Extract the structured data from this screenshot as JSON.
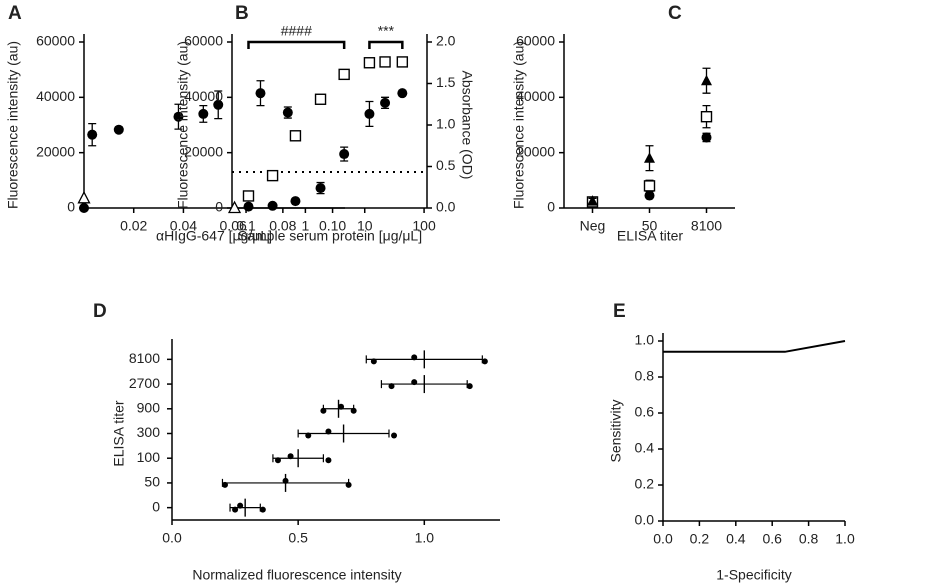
{
  "chart_data": [
    {
      "panel": "A",
      "type": "scatter",
      "ylabel": "Fluorescence intensity (au)",
      "xlabel": "αHIgG-647 [μg/μL]",
      "xlim": [
        0,
        0.105
      ],
      "xticks": [
        0.02,
        0.04,
        0.06,
        0.08,
        {
          "value": 0.1,
          "label": "0.10"
        }
      ],
      "ylim": [
        0,
        60000
      ],
      "yticks": [
        0,
        20000,
        40000,
        60000
      ],
      "series": [
        {
          "marker": "circle",
          "color": "#000000",
          "x": [
            0,
            0.0033,
            0.014,
            0.038,
            0.048,
            0.054,
            0.071,
            0.082
          ],
          "values": [
            0,
            26500,
            28300,
            33000,
            34000,
            37300,
            41500,
            34500
          ],
          "errors": [
            null,
            4000,
            null,
            4500,
            3000,
            5000,
            4500,
            2000
          ]
        },
        {
          "marker": "triangle-open",
          "color": "#000000",
          "x": [
            0
          ],
          "values": [
            3500
          ]
        }
      ]
    },
    {
      "panel": "B",
      "type": "scatter",
      "xscale": "log",
      "ylabel": "Fluorescence intensity (au)",
      "y2label": "Absorbance (OD)",
      "xlabel": "Sample serum protein [μg/μL]",
      "xlim": [
        0.058,
        112
      ],
      "xticks": [
        0.1,
        1,
        10,
        100
      ],
      "ylim": [
        0,
        60000
      ],
      "yticks": [
        0,
        20000,
        40000,
        60000
      ],
      "y2lim": [
        0,
        2
      ],
      "y2ticks": [
        {
          "value": 0,
          "label": "0.0"
        },
        0.5,
        {
          "value": 1,
          "label": "1.0"
        },
        1.5,
        {
          "value": 2,
          "label": "2.0"
        }
      ],
      "reference_line": 13000,
      "brackets": [
        {
          "label": "####",
          "x": [
            0.11,
            4.5
          ]
        },
        {
          "label": "***",
          "x": [
            12,
            43
          ]
        }
      ],
      "series": [
        {
          "marker": "circle",
          "color": "#000000",
          "x": [
            0.11,
            0.28,
            0.68,
            1.8,
            4.5,
            12,
            22,
            43
          ],
          "values": [
            500,
            800,
            2500,
            7200,
            19500,
            34000,
            38000,
            41500
          ],
          "errors": [
            null,
            null,
            null,
            2000,
            2500,
            4500,
            2000,
            null
          ]
        },
        {
          "marker": "square-open",
          "color": "#000000",
          "axis": "y2",
          "x": [
            0.11,
            0.28,
            0.68,
            1.8,
            4.5,
            12,
            22,
            43
          ],
          "values": [
            0.145,
            0.39,
            0.87,
            1.31,
            1.61,
            1.75,
            1.76,
            1.76
          ]
        },
        {
          "marker": "triangle-open",
          "color": "#000000",
          "x": [
            0.064
          ],
          "values": [
            0
          ]
        }
      ]
    },
    {
      "panel": "C",
      "type": "scatter",
      "ylabel": "Fluorescence intensity (au)",
      "xlabel": "ELISA titer",
      "categories": [
        "Neg",
        "50",
        "8100"
      ],
      "ylim": [
        0,
        60000
      ],
      "yticks": [
        0,
        20000,
        40000,
        60000
      ],
      "series": [
        {
          "marker": "circle",
          "color": "#000000",
          "values": [
            1800,
            4500,
            25500
          ],
          "errors": [
            null,
            null,
            1500
          ]
        },
        {
          "marker": "square-open",
          "color": "#000000",
          "values": [
            2200,
            8000,
            33000
          ],
          "errors": [
            1000,
            2000,
            4000
          ]
        },
        {
          "marker": "triangle",
          "color": "#000000",
          "values": [
            2500,
            18000,
            46000
          ],
          "errors": [
            1000,
            4500,
            4500
          ]
        }
      ]
    },
    {
      "panel": "D",
      "type": "dot-plot",
      "ylabel": "ELISA titer",
      "xlabel": "Normalized fluorescence intensity",
      "categories": [
        "8100",
        "2700",
        "900",
        "300",
        "100",
        "50",
        "0"
      ],
      "xlim": [
        0,
        1.3
      ],
      "xticks": [
        {
          "value": 0,
          "label": "0.0"
        },
        0.5,
        {
          "value": 1,
          "label": "1.0"
        }
      ],
      "means": [
        1.0,
        1.0,
        0.66,
        0.68,
        0.5,
        0.45,
        0.29
      ],
      "sd": [
        0.23,
        0.17,
        0.06,
        0.18,
        0.1,
        0.25,
        0.06
      ],
      "points": [
        [
          0.8,
          0.96,
          1.24
        ],
        [
          0.87,
          0.96,
          1.18
        ],
        [
          0.6,
          0.67,
          0.72
        ],
        [
          0.54,
          0.62,
          0.88
        ],
        [
          0.42,
          0.47,
          0.62
        ],
        [
          0.21,
          0.45,
          0.7
        ],
        [
          0.25,
          0.27,
          0.36
        ]
      ],
      "color": "#000000"
    },
    {
      "panel": "E",
      "type": "line",
      "ylabel": "Sensitivity",
      "xlabel": "1-Specificity",
      "xlim": [
        0,
        1
      ],
      "xticks": [
        {
          "value": 0,
          "label": "0.0"
        },
        0.2,
        0.4,
        0.6,
        0.8,
        {
          "value": 1,
          "label": "1.0"
        }
      ],
      "ylim": [
        0,
        1
      ],
      "yticks": [
        {
          "value": 0,
          "label": "0.0"
        },
        0.2,
        0.4,
        0.6,
        0.8,
        {
          "value": 1,
          "label": "1.0"
        }
      ],
      "x": [
        0,
        0.67,
        1
      ],
      "values": [
        0.94,
        0.94,
        1
      ],
      "color": "#000000"
    }
  ]
}
